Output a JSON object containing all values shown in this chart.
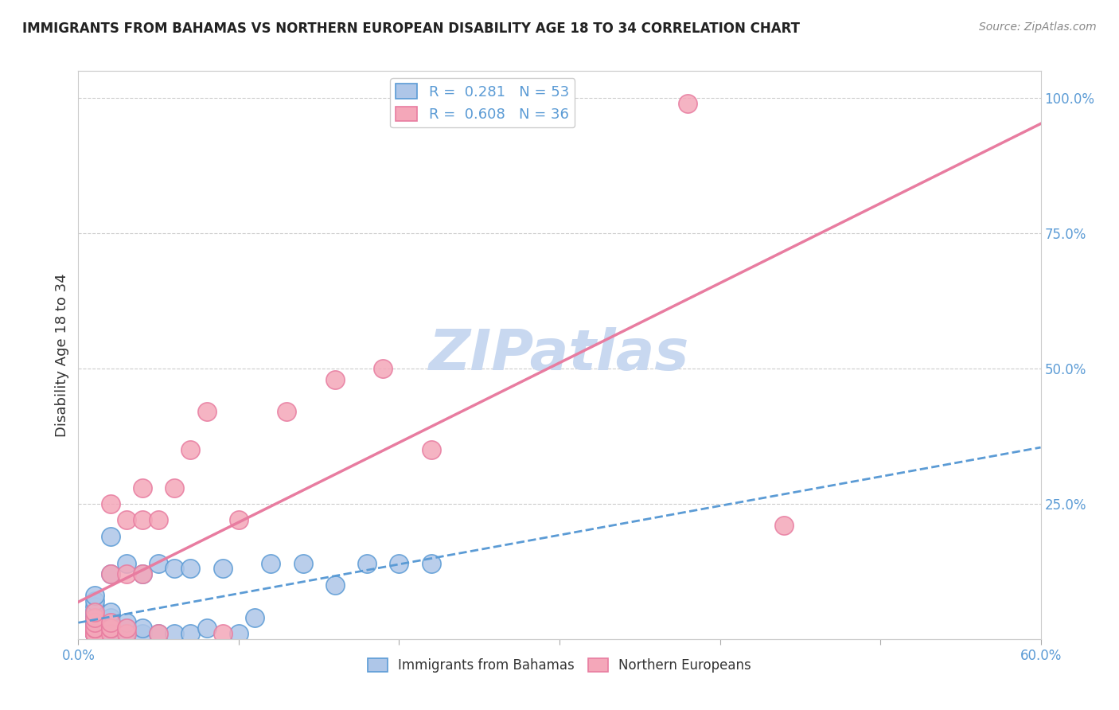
{
  "title": "IMMIGRANTS FROM BAHAMAS VS NORTHERN EUROPEAN DISABILITY AGE 18 TO 34 CORRELATION CHART",
  "source": "Source: ZipAtlas.com",
  "ylabel": "Disability Age 18 to 34",
  "xlim": [
    0.0,
    0.6
  ],
  "ylim": [
    0.0,
    1.05
  ],
  "ytick_positions": [
    0.0,
    0.25,
    0.5,
    0.75,
    1.0
  ],
  "ytick_labels": [
    "",
    "25.0%",
    "50.0%",
    "75.0%",
    "100.0%"
  ],
  "bahamas_color": "#aec6e8",
  "northern_color": "#f4a7b9",
  "trendline_blue_color": "#5b9bd5",
  "trendline_pink_color": "#e87ca0",
  "watermark_color": "#c8d8f0",
  "legend_R_blue": "0.281",
  "legend_N_blue": "53",
  "legend_R_pink": "0.608",
  "legend_N_pink": "36",
  "bahamas_x": [
    0.01,
    0.01,
    0.01,
    0.01,
    0.01,
    0.01,
    0.01,
    0.01,
    0.01,
    0.01,
    0.01,
    0.01,
    0.01,
    0.01,
    0.01,
    0.01,
    0.01,
    0.01,
    0.01,
    0.01,
    0.02,
    0.02,
    0.02,
    0.02,
    0.02,
    0.02,
    0.02,
    0.02,
    0.02,
    0.03,
    0.03,
    0.03,
    0.03,
    0.04,
    0.04,
    0.04,
    0.05,
    0.05,
    0.06,
    0.06,
    0.07,
    0.07,
    0.08,
    0.09,
    0.1,
    0.11,
    0.12,
    0.14,
    0.16,
    0.18,
    0.2,
    0.22,
    0.01
  ],
  "bahamas_y": [
    0.01,
    0.01,
    0.01,
    0.01,
    0.01,
    0.01,
    0.01,
    0.01,
    0.02,
    0.02,
    0.02,
    0.03,
    0.03,
    0.04,
    0.04,
    0.05,
    0.05,
    0.06,
    0.07,
    0.08,
    0.01,
    0.01,
    0.02,
    0.02,
    0.03,
    0.04,
    0.05,
    0.12,
    0.19,
    0.01,
    0.02,
    0.03,
    0.14,
    0.01,
    0.02,
    0.12,
    0.01,
    0.14,
    0.01,
    0.13,
    0.01,
    0.13,
    0.02,
    0.13,
    0.01,
    0.04,
    0.14,
    0.14,
    0.1,
    0.14,
    0.14,
    0.14,
    0.03
  ],
  "northern_x": [
    0.01,
    0.01,
    0.01,
    0.01,
    0.01,
    0.01,
    0.01,
    0.01,
    0.01,
    0.01,
    0.02,
    0.02,
    0.02,
    0.02,
    0.02,
    0.02,
    0.03,
    0.03,
    0.03,
    0.03,
    0.04,
    0.04,
    0.04,
    0.05,
    0.05,
    0.06,
    0.07,
    0.08,
    0.09,
    0.1,
    0.13,
    0.16,
    0.19,
    0.22,
    0.44,
    0.38
  ],
  "northern_y": [
    0.01,
    0.01,
    0.01,
    0.01,
    0.02,
    0.02,
    0.02,
    0.03,
    0.04,
    0.05,
    0.01,
    0.02,
    0.02,
    0.03,
    0.12,
    0.25,
    0.01,
    0.02,
    0.12,
    0.22,
    0.12,
    0.22,
    0.28,
    0.01,
    0.22,
    0.28,
    0.35,
    0.42,
    0.01,
    0.22,
    0.42,
    0.48,
    0.5,
    0.35,
    0.21,
    0.99
  ]
}
